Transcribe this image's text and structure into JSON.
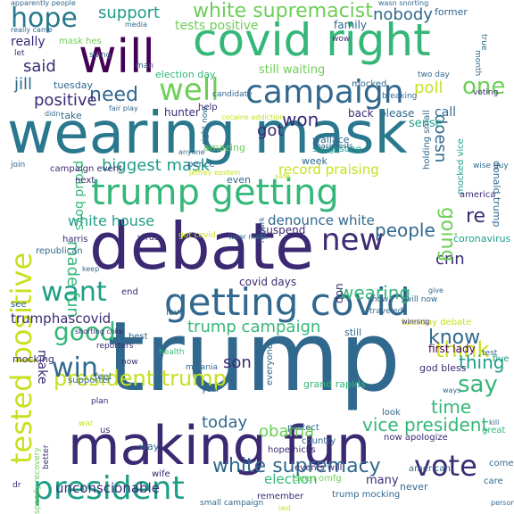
{
  "word_cloud": {
    "background": "#ffffff",
    "palette": {
      "navy": "#3b2a73",
      "teal": "#2a788e",
      "blue": "#31688e",
      "green": "#35b779",
      "lime": "#6ece58",
      "yellow": "#c8e020",
      "purple": "#440154",
      "cyan": "#1f9e89"
    },
    "words": [
      "trump",
      "wearing mask",
      "debate",
      "making fun",
      "covid right",
      "getting covid",
      "will",
      "trump getting",
      "campaign",
      "president",
      "tested positive",
      "hope",
      "new",
      "well",
      "want",
      "president trump",
      "win",
      "white supremacist",
      "vote",
      "think",
      "say",
      "good",
      "white supremacy",
      "know",
      "one",
      "need",
      "re",
      "cnn",
      "people",
      "positive",
      "going",
      "biggest mask",
      "won",
      "time",
      "obama",
      "doesn",
      "wearing",
      "trump campaign",
      "thing",
      "made fun",
      "vice president",
      "son",
      "today",
      "support",
      "nobody",
      "white house",
      "denounce white",
      "said",
      "jill",
      "got",
      "poll",
      "record praising",
      "proud boys",
      "unconscionable",
      "election",
      "make",
      "tests positive",
      "still waiting",
      "really",
      "election day",
      "suing",
      "mask hes",
      "family",
      "former",
      "mocked",
      "sense",
      "back",
      "please",
      "call",
      "covid days",
      "donald trump",
      "first lady",
      "god bless",
      "grand rapids",
      "america",
      "hope hicks",
      "now apologize",
      "american",
      "trump mocking",
      "seen omfg",
      "remember",
      "care",
      "many",
      "never",
      "look",
      "everyone",
      "protect",
      "plan",
      "best",
      "love",
      "end",
      "see",
      "republican",
      "harris",
      "next",
      "even",
      "week",
      "wallace",
      "suggesting",
      "hunter",
      "take",
      "tuesday",
      "pence",
      "help",
      "amazing",
      "coronavirus",
      "don",
      "suspend",
      "way",
      "wife",
      "us",
      "war",
      "feel",
      "better",
      "speedy recovery",
      "small campaign",
      "events will",
      "year",
      "country",
      "now",
      "mocking",
      "supporter",
      "reporters",
      "health",
      "melania",
      "still",
      "tuesday debate",
      "show",
      "traveled",
      "will now",
      "give",
      "winning",
      "test",
      "five",
      "wise guy",
      "mocked vice",
      "holding small",
      "breaking",
      "two day",
      "candidate",
      "man",
      "right now",
      "virus",
      "let",
      "really came",
      "apparently people",
      "media",
      "wasn snorting",
      "true",
      "month",
      "voting",
      "wow",
      "fair play",
      "didn",
      "cocaine addiction",
      "mask tests",
      "anyone",
      "jeffrey epstein",
      "remark",
      "got covid",
      "wear mask",
      "safe",
      "campaign event",
      "join",
      "keep",
      "great",
      "come",
      "dr",
      "shorting coke",
      "trumphascovid",
      "last",
      "person",
      "kill",
      "ways"
    ]
  }
}
